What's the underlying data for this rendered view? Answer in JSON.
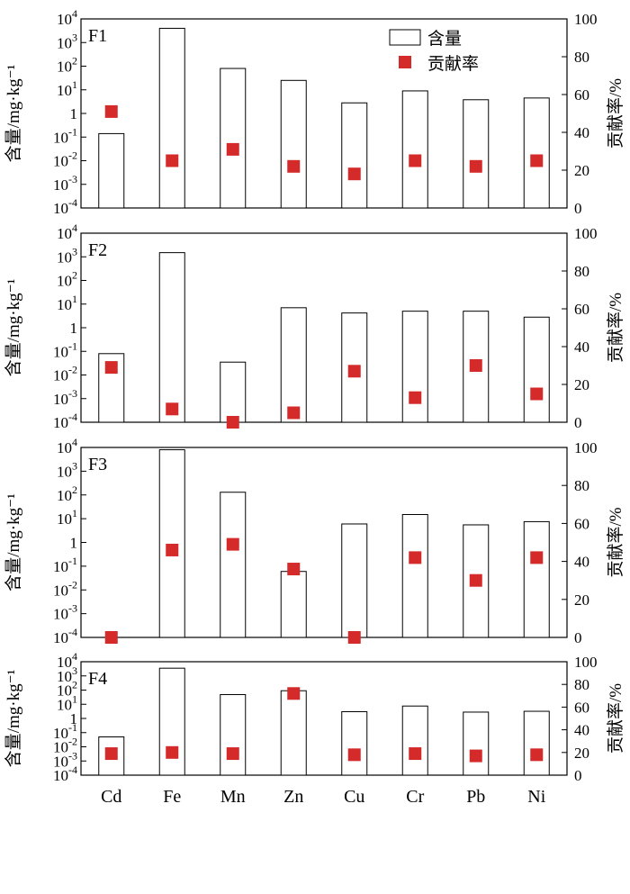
{
  "chart_data": {
    "type": "bar",
    "categories": [
      "Cd",
      "Fe",
      "Mn",
      "Zn",
      "Cu",
      "Cr",
      "Pb",
      "Ni"
    ],
    "left_axis": {
      "label": "含量/mg·kg⁻¹",
      "scale": "log",
      "ylim": [
        0.0001,
        10000
      ],
      "tick_labels": [
        {
          "base": "10",
          "exp": "4"
        },
        {
          "base": "10",
          "exp": "3"
        },
        {
          "base": "10",
          "exp": "2"
        },
        {
          "base": "10",
          "exp": "1"
        },
        {
          "base": "1",
          "exp": ""
        },
        {
          "base": "10",
          "exp": "-1"
        },
        {
          "base": "10",
          "exp": "-2"
        },
        {
          "base": "10",
          "exp": "-3"
        },
        {
          "base": "10",
          "exp": "-4"
        }
      ]
    },
    "right_axis": {
      "label": "贡献率/%",
      "ylim": [
        0,
        100
      ],
      "ticks": [
        "100",
        "80",
        "60",
        "40",
        "20",
        "0"
      ]
    },
    "legend": {
      "position": "top-right (panel F1)",
      "bar_label": "含量",
      "marker_label": "贡献率"
    },
    "colors": {
      "marker": "#d42a2a",
      "bar_fill": "#ffffff",
      "bar_stroke": "#000000"
    },
    "panels": [
      {
        "label": "F1",
        "series": [
          {
            "name": "含量",
            "type": "bar",
            "axis": "left",
            "values": [
              0.14,
              4000,
              80,
              25,
              2.8,
              9,
              3.8,
              4.5
            ]
          },
          {
            "name": "贡献率",
            "type": "scatter",
            "axis": "right",
            "values": [
              51,
              25,
              31,
              22,
              18,
              25,
              22,
              25
            ]
          }
        ]
      },
      {
        "label": "F2",
        "series": [
          {
            "name": "含量",
            "type": "bar",
            "axis": "left",
            "values": [
              0.08,
              1500,
              0.035,
              7,
              4.2,
              5,
              5,
              2.8
            ]
          },
          {
            "name": "贡献率",
            "type": "scatter",
            "axis": "right",
            "values": [
              29,
              7,
              0,
              5,
              27,
              13,
              30,
              15
            ]
          }
        ]
      },
      {
        "label": "F3",
        "series": [
          {
            "name": "含量",
            "type": "bar",
            "axis": "left",
            "values": [
              0.0001,
              8000,
              130,
              0.06,
              6,
              15,
              5.5,
              7.5
            ]
          },
          {
            "name": "贡献率",
            "type": "scatter",
            "axis": "right",
            "values": [
              0,
              46,
              49,
              36,
              0,
              42,
              30,
              42
            ]
          }
        ]
      },
      {
        "label": "F4",
        "series": [
          {
            "name": "含量",
            "type": "bar",
            "axis": "left",
            "values": [
              0.05,
              3500,
              48,
              90,
              3,
              7.5,
              2.8,
              3.2
            ]
          },
          {
            "name": "贡献率",
            "type": "scatter",
            "axis": "right",
            "values": [
              19,
              20,
              19,
              72,
              18,
              19,
              17,
              18
            ]
          }
        ]
      }
    ]
  }
}
